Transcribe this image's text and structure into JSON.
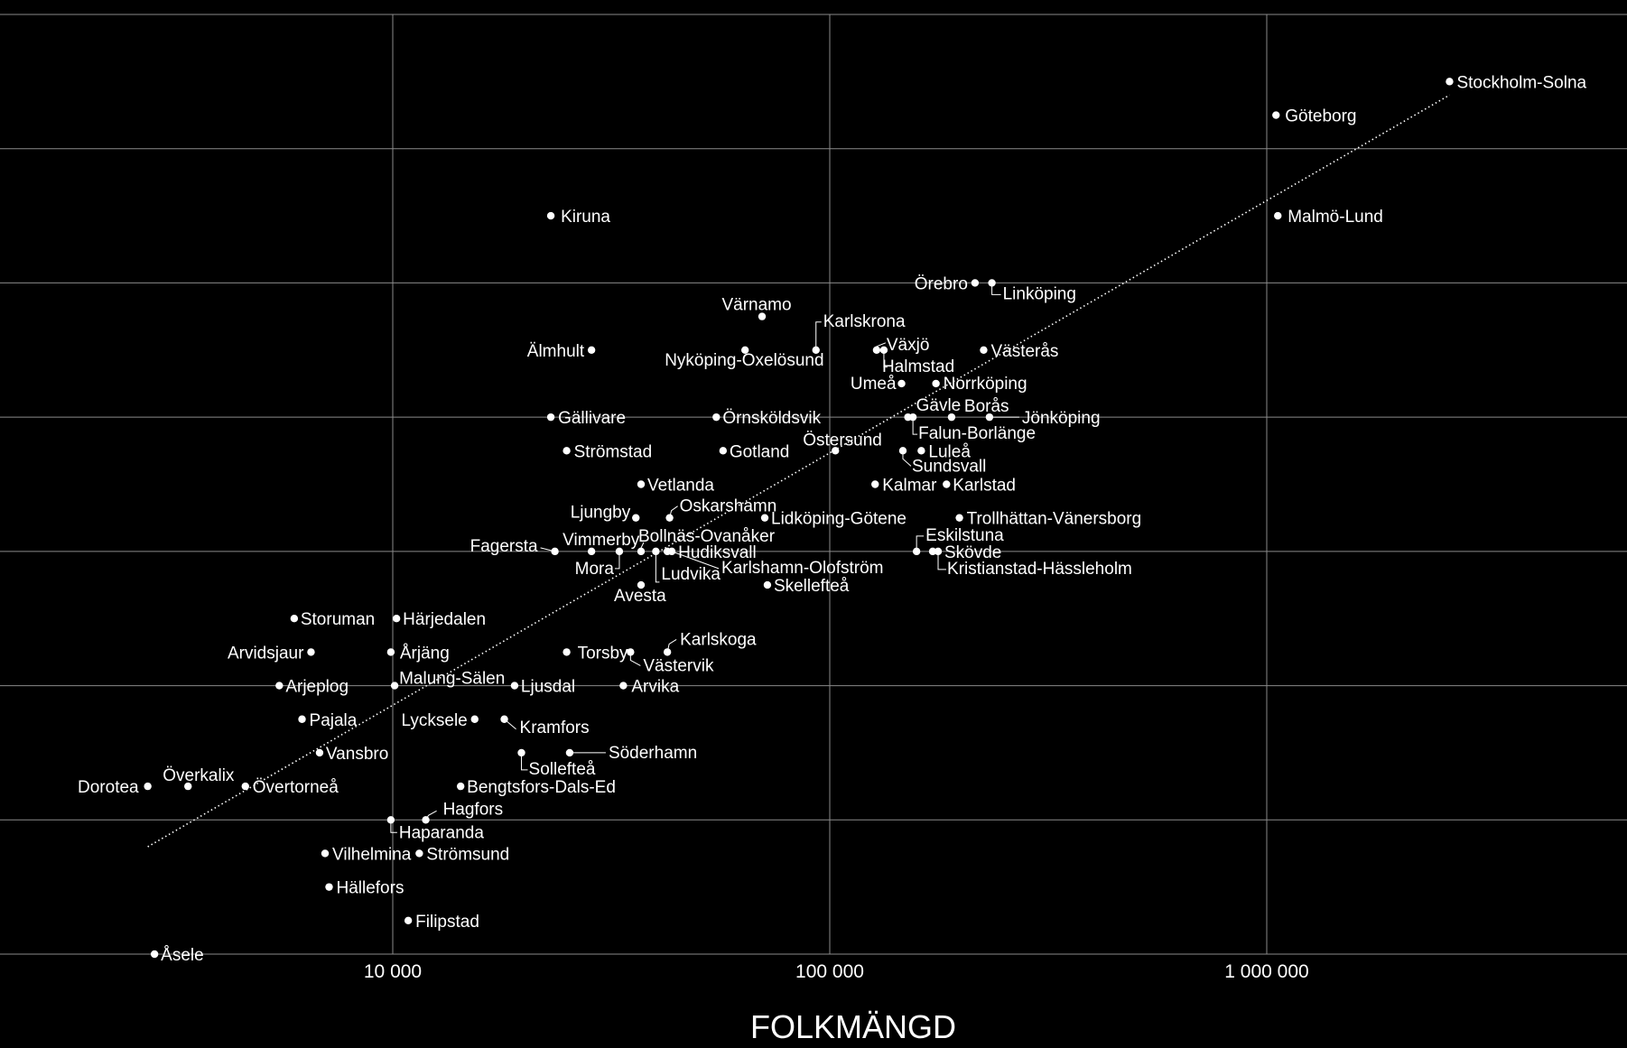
{
  "chart_data": {
    "type": "scatter",
    "title": "",
    "xlabel": "FOLKMÄNGD",
    "ylabel": "",
    "x_scale": "log",
    "xlim": [
      1800,
      5000000
    ],
    "ylim": [
      0,
      7
    ],
    "x_ticks": [
      {
        "value": 10000,
        "label": "10 000"
      },
      {
        "value": 100000,
        "label": "100 000"
      },
      {
        "value": 1000000,
        "label": "1 000 000"
      }
    ],
    "y_ticks": [
      0,
      1,
      2,
      3,
      4,
      5,
      6,
      7
    ],
    "grid": true,
    "trendline": {
      "x": [
        2750,
        2620000
      ],
      "y": [
        0.8,
        6.4
      ]
    },
    "points": [
      {
        "name": "Stockholm-Solna",
        "x": 2620000,
        "y": 6.5
      },
      {
        "name": "Göteborg",
        "x": 1050000,
        "y": 6.25
      },
      {
        "name": "Malmö-Lund",
        "x": 1060000,
        "y": 5.5
      },
      {
        "name": "Kiruna",
        "x": 23000,
        "y": 5.5
      },
      {
        "name": "Örebro",
        "x": 215000,
        "y": 5.0
      },
      {
        "name": "Linköping",
        "x": 235000,
        "y": 5.0
      },
      {
        "name": "Värnamo",
        "x": 70000,
        "y": 4.75
      },
      {
        "name": "Karlskrona",
        "x": 93000,
        "y": 4.5
      },
      {
        "name": "Växjö",
        "x": 128000,
        "y": 4.5
      },
      {
        "name": "Halmstad",
        "x": 133000,
        "y": 4.5
      },
      {
        "name": "Västerås",
        "x": 225000,
        "y": 4.5
      },
      {
        "name": "Älmhult",
        "x": 28500,
        "y": 4.5
      },
      {
        "name": "Nyköping-Oxelösund",
        "x": 64000,
        "y": 4.5
      },
      {
        "name": "Umeå",
        "x": 146000,
        "y": 4.25
      },
      {
        "name": "Norrköping",
        "x": 175000,
        "y": 4.25
      },
      {
        "name": "Gällivare",
        "x": 23000,
        "y": 4.0
      },
      {
        "name": "Örnsköldsvik",
        "x": 55000,
        "y": 4.0
      },
      {
        "name": "Gävle",
        "x": 151000,
        "y": 4.0
      },
      {
        "name": "Falun-Borlänge",
        "x": 155000,
        "y": 4.0
      },
      {
        "name": "Borås",
        "x": 190000,
        "y": 4.0
      },
      {
        "name": "Jönköping",
        "x": 232000,
        "y": 4.0
      },
      {
        "name": "Strömstad",
        "x": 25000,
        "y": 3.75
      },
      {
        "name": "Gotland",
        "x": 57000,
        "y": 3.75
      },
      {
        "name": "Östersund",
        "x": 103000,
        "y": 3.75
      },
      {
        "name": "Luleå",
        "x": 162000,
        "y": 3.75
      },
      {
        "name": "Sundsvall",
        "x": 147000,
        "y": 3.75
      },
      {
        "name": "Vetlanda",
        "x": 37000,
        "y": 3.5
      },
      {
        "name": "Kalmar",
        "x": 127000,
        "y": 3.5
      },
      {
        "name": "Karlstad",
        "x": 185000,
        "y": 3.5
      },
      {
        "name": "Ljungby",
        "x": 36000,
        "y": 3.25
      },
      {
        "name": "Oskarshamn",
        "x": 43000,
        "y": 3.25
      },
      {
        "name": "Lidköping-Götene",
        "x": 71000,
        "y": 3.25
      },
      {
        "name": "Trollhättan-Vänersborg",
        "x": 198000,
        "y": 3.25
      },
      {
        "name": "Fagersta",
        "x": 23500,
        "y": 3.0
      },
      {
        "name": "Vimmerby",
        "x": 28500,
        "y": 3.0
      },
      {
        "name": "Mora",
        "x": 33000,
        "y": 3.0
      },
      {
        "name": "Bollnäs-Ovanåker",
        "x": 37000,
        "y": 3.0
      },
      {
        "name": "Ludvika",
        "x": 40000,
        "y": 3.0
      },
      {
        "name": "Hudiksvall",
        "x": 42500,
        "y": 3.0
      },
      {
        "name": "Karlshamn-Olofström",
        "x": 43500,
        "y": 3.0
      },
      {
        "name": "Eskilstuna",
        "x": 158000,
        "y": 3.0
      },
      {
        "name": "Skövde",
        "x": 172000,
        "y": 3.0
      },
      {
        "name": "Kristianstad-Hässleholm",
        "x": 177000,
        "y": 3.0
      },
      {
        "name": "Avesta",
        "x": 37000,
        "y": 2.75
      },
      {
        "name": "Skellefteå",
        "x": 72000,
        "y": 2.75
      },
      {
        "name": "Storuman",
        "x": 5950,
        "y": 2.5
      },
      {
        "name": "Härjedalen",
        "x": 10200,
        "y": 2.5
      },
      {
        "name": "Arvidsjaur",
        "x": 6500,
        "y": 2.25
      },
      {
        "name": "Årjäng",
        "x": 9900,
        "y": 2.25
      },
      {
        "name": "Torsby",
        "x": 25000,
        "y": 2.25
      },
      {
        "name": "Västervik",
        "x": 35000,
        "y": 2.25
      },
      {
        "name": "Karlskoga",
        "x": 42500,
        "y": 2.25
      },
      {
        "name": "Arjeplog",
        "x": 5500,
        "y": 2.0
      },
      {
        "name": "Malung-Sälen",
        "x": 10100,
        "y": 2.0
      },
      {
        "name": "Ljusdal",
        "x": 19000,
        "y": 2.0
      },
      {
        "name": "Arvika",
        "x": 33700,
        "y": 2.0
      },
      {
        "name": "Pajala",
        "x": 6200,
        "y": 1.75
      },
      {
        "name": "Lycksele",
        "x": 15400,
        "y": 1.75
      },
      {
        "name": "Kramfors",
        "x": 18000,
        "y": 1.75
      },
      {
        "name": "Vansbro",
        "x": 6800,
        "y": 1.5
      },
      {
        "name": "Sollefteå",
        "x": 19700,
        "y": 1.5
      },
      {
        "name": "Söderhamn",
        "x": 25400,
        "y": 1.5
      },
      {
        "name": "Dorotea",
        "x": 2750,
        "y": 1.25
      },
      {
        "name": "Överkalix",
        "x": 3400,
        "y": 1.25
      },
      {
        "name": "Övertorneå",
        "x": 4600,
        "y": 1.25
      },
      {
        "name": "Bengtsfors-Dals-Ed",
        "x": 14300,
        "y": 1.25
      },
      {
        "name": "Haparanda",
        "x": 9900,
        "y": 1.0
      },
      {
        "name": "Hagfors",
        "x": 11900,
        "y": 1.0
      },
      {
        "name": "Vilhelmina",
        "x": 7000,
        "y": 0.75
      },
      {
        "name": "Strömsund",
        "x": 11500,
        "y": 0.75
      },
      {
        "name": "Hällefors",
        "x": 7150,
        "y": 0.5
      },
      {
        "name": "Filipstad",
        "x": 10850,
        "y": 0.25
      },
      {
        "name": "Åsele",
        "x": 2850,
        "y": 0.0
      }
    ]
  }
}
